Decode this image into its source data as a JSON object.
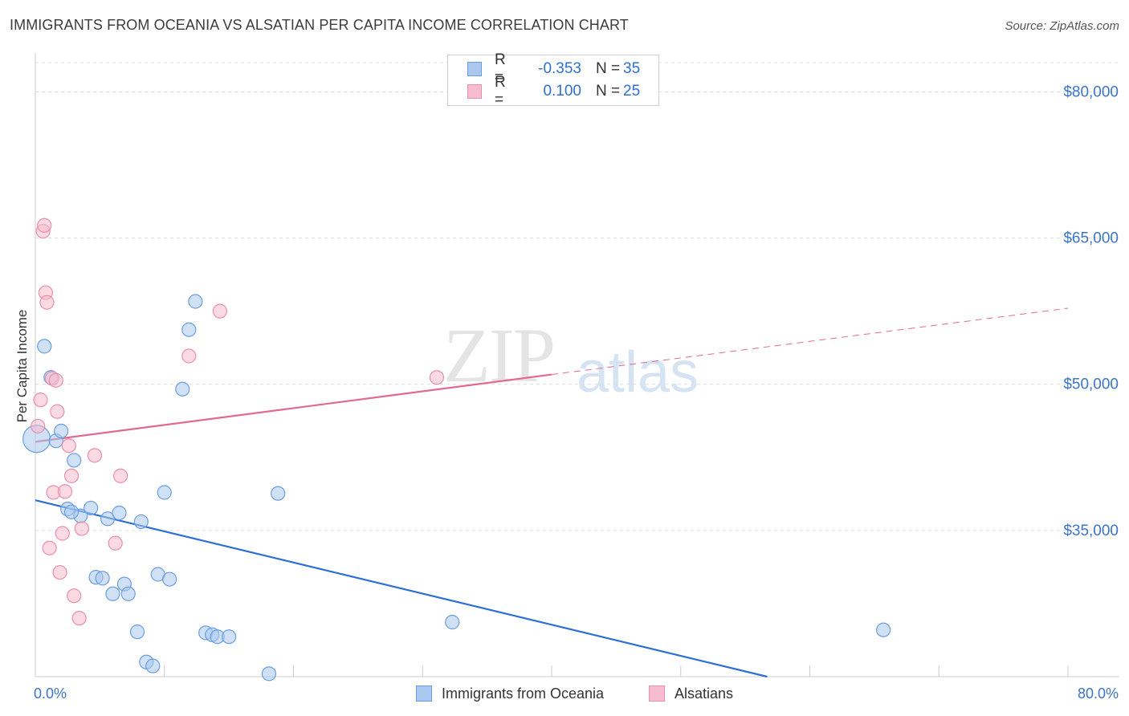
{
  "title": "IMMIGRANTS FROM OCEANIA VS ALSATIAN PER CAPITA INCOME CORRELATION CHART",
  "source": "Source: ZipAtlas.com",
  "watermark": {
    "zip": "ZIP",
    "atlas": "atlas"
  },
  "legend_top": {
    "series1": {
      "r_label": "R =",
      "r_value": "-0.353",
      "n_label": "N =",
      "n_value": "35"
    },
    "series2": {
      "r_label": "R =",
      "r_value": "0.100",
      "n_label": "N =",
      "n_value": "25"
    }
  },
  "legend_bottom": {
    "series1": "Immigrants from Oceania",
    "series2": "Alsatians"
  },
  "colors": {
    "series1_fill": "#aac8ef",
    "series1_stroke": "#6b9ee0",
    "series1_line": "#2e6fd4",
    "series2_fill": "#f7bccd",
    "series2_stroke": "#ea8fab",
    "series2_line": "#e06a91",
    "tick_label": "#3b74c8",
    "grid": "#dddddd"
  },
  "chart_data": {
    "type": "scatter",
    "title": "IMMIGRANTS FROM OCEANIA VS ALSATIAN PER CAPITA INCOME CORRELATION CHART",
    "xlabel": "",
    "ylabel": "Per Capita Income",
    "xlim": [
      0,
      80
    ],
    "ylim": [
      20000,
      83000
    ],
    "x_tick_labels": [
      "0.0%",
      "80.0%"
    ],
    "y_ticks": [
      35000,
      50000,
      65000,
      80000
    ],
    "y_tick_labels": [
      "$35,000",
      "$50,000",
      "$65,000",
      "$80,000"
    ],
    "series": [
      {
        "name": "Immigrants from Oceania",
        "r": -0.353,
        "n": 35,
        "points": [
          [
            0.1,
            44400
          ],
          [
            0.7,
            53900
          ],
          [
            1.2,
            50700
          ],
          [
            1.6,
            44200
          ],
          [
            2.0,
            45200
          ],
          [
            3.0,
            42200
          ],
          [
            2.5,
            37200
          ],
          [
            3.5,
            36500
          ],
          [
            4.3,
            37300
          ],
          [
            5.6,
            36200
          ],
          [
            6.5,
            36800
          ],
          [
            8.2,
            35900
          ],
          [
            10.0,
            38900
          ],
          [
            18.8,
            38800
          ],
          [
            11.4,
            49500
          ],
          [
            11.9,
            55600
          ],
          [
            12.4,
            58500
          ],
          [
            4.7,
            30200
          ],
          [
            5.2,
            30100
          ],
          [
            6.0,
            28500
          ],
          [
            6.9,
            29500
          ],
          [
            7.2,
            28500
          ],
          [
            9.5,
            30500
          ],
          [
            10.4,
            30000
          ],
          [
            7.9,
            24600
          ],
          [
            13.2,
            24500
          ],
          [
            13.7,
            24300
          ],
          [
            14.1,
            24100
          ],
          [
            15.0,
            24100
          ],
          [
            8.6,
            21500
          ],
          [
            9.1,
            21100
          ],
          [
            18.1,
            20300
          ],
          [
            32.3,
            25600
          ],
          [
            65.7,
            24800
          ],
          [
            2.8,
            36900
          ]
        ]
      },
      {
        "name": "Alsatians",
        "r": 0.1,
        "n": 25,
        "points": [
          [
            0.2,
            45700
          ],
          [
            0.4,
            48400
          ],
          [
            0.6,
            65700
          ],
          [
            0.7,
            66300
          ],
          [
            0.8,
            59400
          ],
          [
            0.9,
            58400
          ],
          [
            1.1,
            33200
          ],
          [
            1.3,
            50600
          ],
          [
            1.4,
            38900
          ],
          [
            1.6,
            50400
          ],
          [
            1.7,
            47200
          ],
          [
            1.9,
            30700
          ],
          [
            2.1,
            34700
          ],
          [
            2.3,
            39000
          ],
          [
            2.6,
            43700
          ],
          [
            2.8,
            40600
          ],
          [
            3.0,
            28300
          ],
          [
            3.4,
            26000
          ],
          [
            3.6,
            35200
          ],
          [
            4.6,
            42700
          ],
          [
            6.2,
            33700
          ],
          [
            6.6,
            40600
          ],
          [
            11.9,
            52900
          ],
          [
            14.3,
            57500
          ],
          [
            31.1,
            50700
          ]
        ]
      }
    ],
    "trendlines": [
      {
        "series": "Immigrants from Oceania",
        "from": [
          0,
          38100
        ],
        "to": [
          56.7,
          20000
        ],
        "style": "solid"
      },
      {
        "series": "Alsatians",
        "from": [
          0,
          44100
        ],
        "to": [
          40,
          51000
        ],
        "style": "solid"
      },
      {
        "series": "Alsatians",
        "from": [
          40,
          51000
        ],
        "to": [
          80,
          57800
        ],
        "style": "dashed"
      }
    ]
  }
}
